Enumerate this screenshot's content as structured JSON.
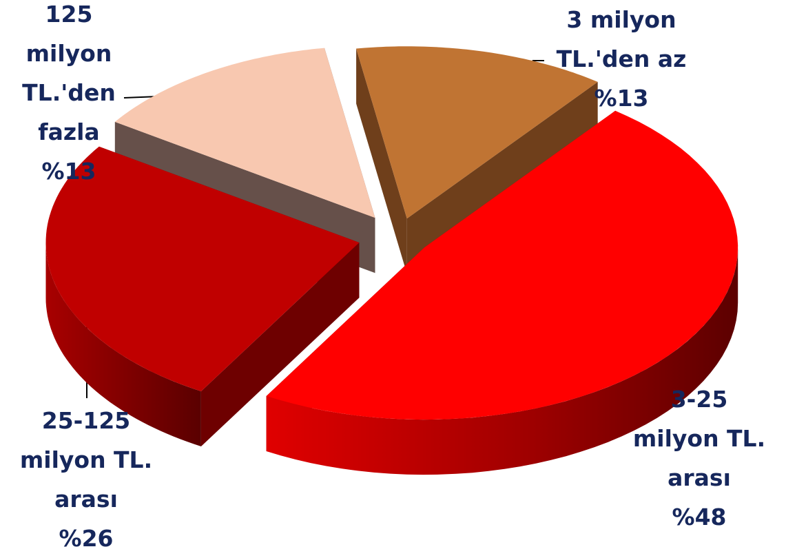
{
  "chart_data": {
    "type": "pie",
    "title": "",
    "slices": [
      {
        "category": [
          "3 milyon",
          "TL.'den az"
        ],
        "percent_label": "%13",
        "value": 13,
        "color": "#c07433",
        "side_color": "#6f3f1b"
      },
      {
        "category": [
          "3-25",
          "milyon TL.",
          "arası"
        ],
        "percent_label": "%48",
        "value": 48,
        "color": "#ff0000",
        "side_color": "#8f0000"
      },
      {
        "category": [
          "25-125",
          "milyon TL.",
          "arası"
        ],
        "percent_label": "%26",
        "value": 26,
        "color": "#c00000",
        "side_color": "#6e0000"
      },
      {
        "category": [
          "125",
          "milyon",
          "TL.'den",
          "fazla"
        ],
        "percent_label": "%13",
        "value": 13,
        "color": "#f8c8b0",
        "side_color": "#66504a"
      }
    ],
    "label_color": "#16275c",
    "legend": "none"
  }
}
